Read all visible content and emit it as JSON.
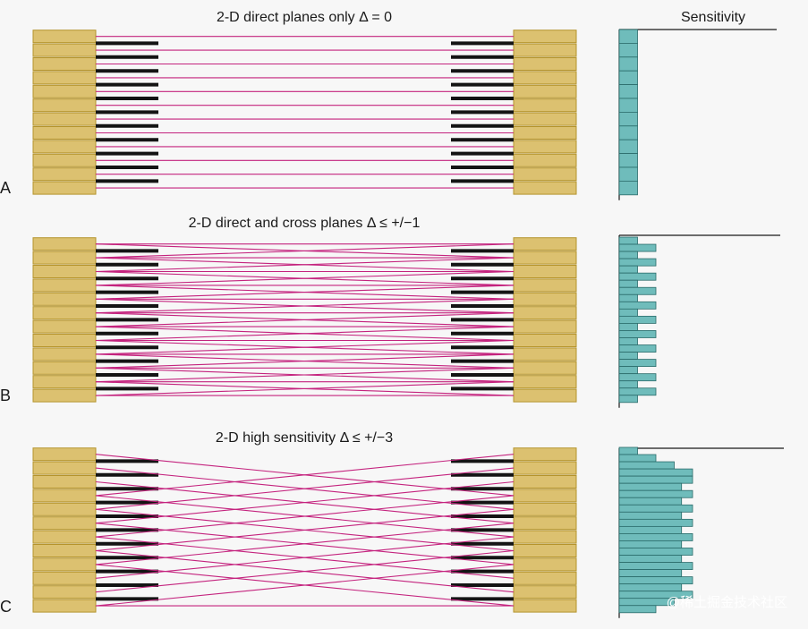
{
  "panels": [
    {
      "label": "A",
      "title": "2-D direct planes only Δ = 0",
      "max_delta": 0,
      "rings": 12,
      "sensitivity": [
        1,
        1,
        1,
        1,
        1,
        1,
        1,
        1,
        1,
        1,
        1,
        1
      ]
    },
    {
      "label": "B",
      "title": "2-D direct and cross planes  Δ ≤ +/−1",
      "max_delta": 1,
      "rings": 12,
      "sensitivity": [
        1,
        2,
        1,
        2,
        1,
        2,
        1,
        2,
        1,
        2,
        1,
        2,
        1,
        2,
        1,
        2,
        1,
        2,
        1,
        2,
        1,
        2,
        1
      ]
    },
    {
      "label": "C",
      "title": "2-D high sensitivity Δ ≤ +/−3",
      "max_delta": 3,
      "rings": 12,
      "sensitivity": [
        1,
        2,
        3,
        4,
        4,
        3.4,
        4,
        3.4,
        4,
        3.4,
        4,
        3.4,
        4,
        3.4,
        4,
        3.4,
        4,
        3.4,
        4,
        3.4,
        4,
        3,
        2
      ]
    }
  ],
  "sensitivity_header": "Sensitivity",
  "watermark": "@稀土掘金技术社区",
  "colors": {
    "background": "#f7f7f7",
    "detector_fill": "#dcc170",
    "detector_stroke": "#b5942d",
    "septa": "#141414",
    "lor": "#c4237e",
    "bar_fill": "#6fbcbb",
    "bar_stroke": "#2a6b6a",
    "axis": "#1a1a1a"
  }
}
